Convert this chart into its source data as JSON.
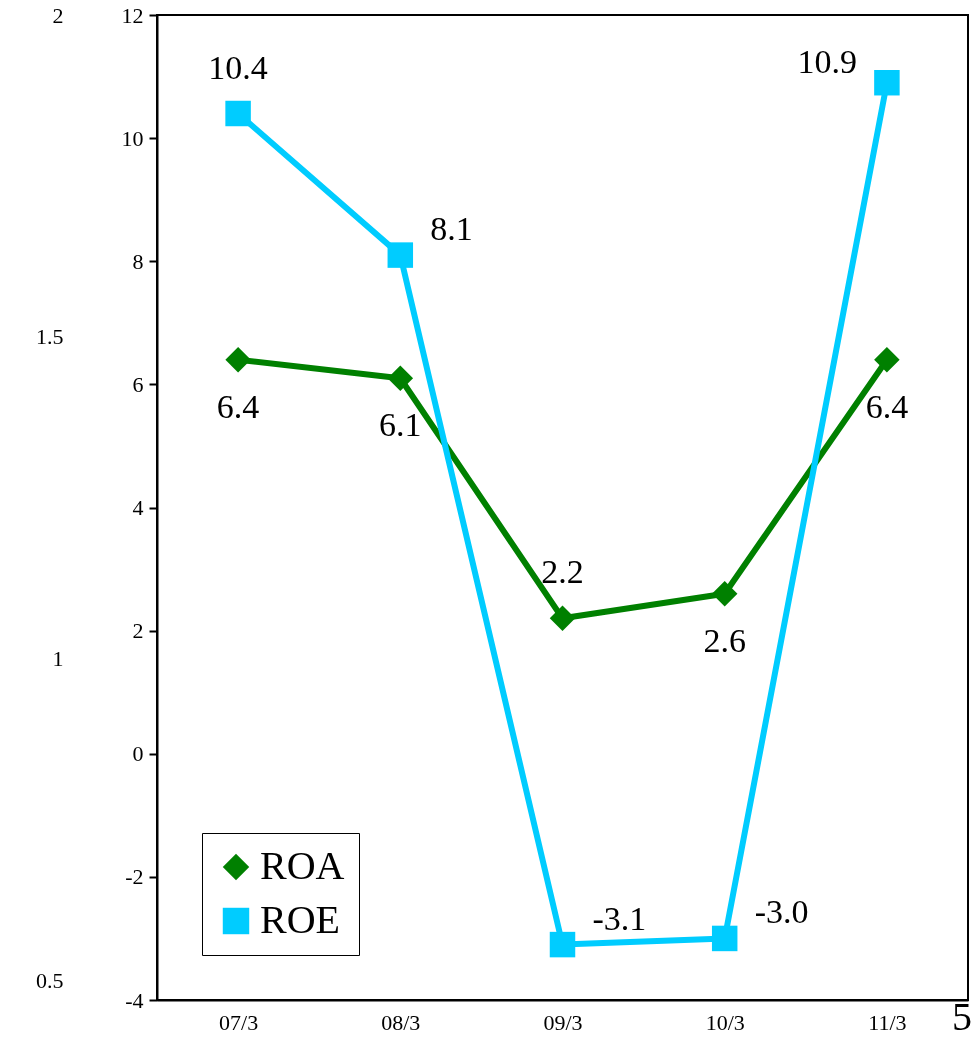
{
  "chart_data": {
    "type": "line",
    "categories": [
      "07/3",
      "08/3",
      "09/3",
      "10/3",
      "11/3"
    ],
    "series": [
      {
        "name": "ROA",
        "color": "#008000",
        "marker": "diamond",
        "values": [
          6.4,
          6.1,
          2.2,
          2.6,
          6.4
        ],
        "value_labels": [
          "6.4",
          "6.1",
          "2.2",
          "2.6",
          "6.4"
        ]
      },
      {
        "name": "ROE",
        "color": "#00ccff",
        "marker": "square",
        "values": [
          10.4,
          8.1,
          -3.1,
          -3.0,
          10.9
        ],
        "value_labels": [
          "10.4",
          "8.1",
          "-3.1",
          "-3.0",
          "10.9"
        ]
      }
    ],
    "ylim": [
      -4,
      12
    ],
    "yticks": [
      -4,
      -2,
      0,
      2,
      4,
      6,
      8,
      10,
      12
    ],
    "y2lim": [
      0.47,
      2
    ],
    "y2ticks": [
      0.5,
      1,
      1.5,
      2
    ],
    "legend": "bottom left",
    "grid": false,
    "annotations": [
      "5"
    ]
  }
}
